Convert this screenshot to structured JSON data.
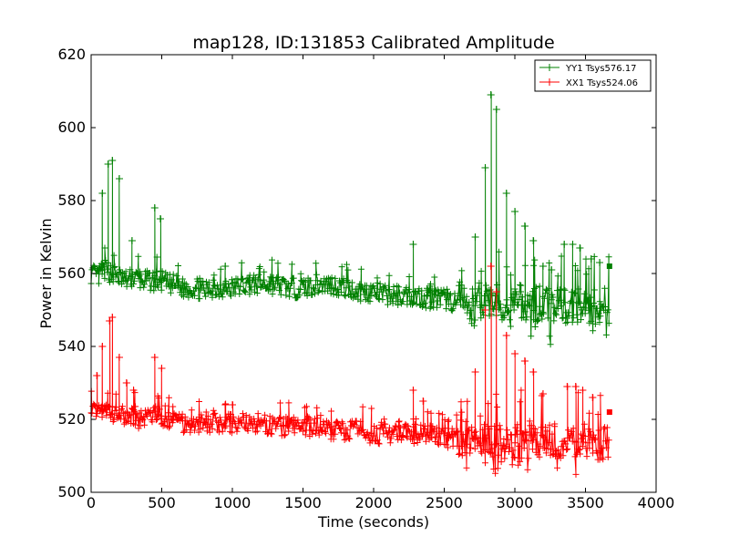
{
  "chart_data": {
    "type": "line",
    "title": "map128, ID:131853 Calibrated Amplitude",
    "xlabel": "Time (seconds)",
    "ylabel": "Power in Kelvin",
    "xlim": [
      0,
      4000
    ],
    "ylim": [
      500,
      620
    ],
    "xticks": [
      "0",
      "500",
      "1000",
      "1500",
      "2000",
      "2500",
      "3000",
      "3500",
      "4000"
    ],
    "yticks": [
      "500",
      "520",
      "540",
      "560",
      "580",
      "600",
      "620"
    ],
    "grid": false,
    "legend_position": "top-right",
    "series": [
      {
        "name": "YY1 Tsys576.17",
        "color": "#008000",
        "marker": "+",
        "x": [
          0,
          50,
          100,
          150,
          200,
          250,
          300,
          350,
          400,
          450,
          500,
          550,
          600,
          650,
          700,
          750,
          800,
          850,
          900,
          950,
          1000,
          1100,
          1200,
          1300,
          1400,
          1500,
          1600,
          1700,
          1800,
          1900,
          2000,
          2100,
          2200,
          2300,
          2400,
          2500,
          2600,
          2700,
          2800,
          2850,
          2900,
          3000,
          3100,
          3200,
          3300,
          3400,
          3500,
          3600,
          3670
        ],
        "y": [
          560,
          559,
          561,
          560,
          559,
          558,
          559,
          558,
          558,
          558,
          558,
          557,
          557,
          556,
          556,
          556,
          555,
          556,
          556,
          556,
          556,
          557,
          557,
          557,
          556,
          556,
          557,
          557,
          556,
          555,
          555,
          554,
          554,
          554,
          553,
          553,
          552,
          552,
          553,
          553,
          552,
          552,
          552,
          551,
          551,
          551,
          551,
          551,
          552
        ],
        "spikes": [
          {
            "x": 80,
            "y": 582
          },
          {
            "x": 120,
            "y": 590
          },
          {
            "x": 150,
            "y": 591
          },
          {
            "x": 200,
            "y": 586
          },
          {
            "x": 290,
            "y": 569
          },
          {
            "x": 450,
            "y": 578
          },
          {
            "x": 490,
            "y": 575
          },
          {
            "x": 950,
            "y": 562
          },
          {
            "x": 2280,
            "y": 568
          },
          {
            "x": 2720,
            "y": 570
          },
          {
            "x": 2790,
            "y": 589
          },
          {
            "x": 2830,
            "y": 609
          },
          {
            "x": 2870,
            "y": 605
          },
          {
            "x": 2940,
            "y": 582
          },
          {
            "x": 3000,
            "y": 577
          },
          {
            "x": 3070,
            "y": 573
          },
          {
            "x": 3130,
            "y": 569
          },
          {
            "x": 3200,
            "y": 562
          },
          {
            "x": 3260,
            "y": 561
          },
          {
            "x": 3350,
            "y": 568
          },
          {
            "x": 3410,
            "y": 568
          },
          {
            "x": 3460,
            "y": 567
          },
          {
            "x": 3540,
            "y": 564
          },
          {
            "x": 3600,
            "y": 563
          }
        ],
        "end_value": 562
      },
      {
        "name": "XX1 Tsys524.06",
        "color": "#ff0000",
        "marker": "+",
        "x": [
          0,
          50,
          100,
          150,
          200,
          250,
          300,
          350,
          400,
          450,
          500,
          550,
          600,
          650,
          700,
          750,
          800,
          850,
          900,
          950,
          1000,
          1100,
          1200,
          1300,
          1400,
          1500,
          1600,
          1700,
          1800,
          1900,
          2000,
          2100,
          2200,
          2300,
          2400,
          2500,
          2600,
          2700,
          2800,
          2850,
          2900,
          3000,
          3100,
          3200,
          3300,
          3400,
          3500,
          3600,
          3670
        ],
        "y": [
          523,
          522,
          522,
          521,
          521,
          521,
          521,
          520,
          521,
          521,
          520,
          520,
          520,
          519,
          519,
          519,
          519,
          519,
          519,
          519,
          519,
          519,
          519,
          518,
          518,
          518,
          518,
          517,
          517,
          517,
          516,
          516,
          516,
          516,
          516,
          515,
          515,
          515,
          514,
          514,
          514,
          514,
          514,
          514,
          514,
          514,
          514,
          513,
          513
        ],
        "spikes": [
          {
            "x": 40,
            "y": 532
          },
          {
            "x": 80,
            "y": 540
          },
          {
            "x": 130,
            "y": 547
          },
          {
            "x": 150,
            "y": 548
          },
          {
            "x": 200,
            "y": 537
          },
          {
            "x": 250,
            "y": 530
          },
          {
            "x": 300,
            "y": 528
          },
          {
            "x": 450,
            "y": 537
          },
          {
            "x": 500,
            "y": 534
          },
          {
            "x": 950,
            "y": 524
          },
          {
            "x": 1000,
            "y": 524
          },
          {
            "x": 2280,
            "y": 528
          },
          {
            "x": 2350,
            "y": 525
          },
          {
            "x": 2720,
            "y": 533
          },
          {
            "x": 2790,
            "y": 550
          },
          {
            "x": 2830,
            "y": 562
          },
          {
            "x": 2870,
            "y": 555
          },
          {
            "x": 2940,
            "y": 543
          },
          {
            "x": 3000,
            "y": 538
          },
          {
            "x": 3070,
            "y": 536
          },
          {
            "x": 3130,
            "y": 533
          },
          {
            "x": 3200,
            "y": 527
          },
          {
            "x": 3370,
            "y": 529
          },
          {
            "x": 3430,
            "y": 529
          },
          {
            "x": 3480,
            "y": 528
          },
          {
            "x": 3550,
            "y": 526
          }
        ],
        "end_value": 522
      }
    ]
  }
}
